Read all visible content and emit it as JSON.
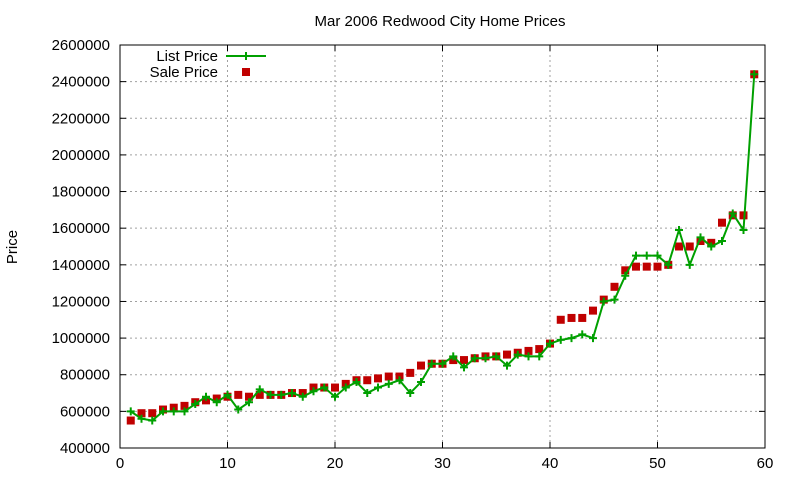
{
  "chart_data": {
    "type": "line",
    "title": "Mar 2006 Redwood City Home Prices",
    "xlabel": "",
    "ylabel": "Price",
    "xlim": [
      0,
      60
    ],
    "ylim": [
      400000,
      2600000
    ],
    "xticks": [
      0,
      10,
      20,
      30,
      40,
      50,
      60
    ],
    "yticks": [
      400000,
      600000,
      800000,
      1000000,
      1200000,
      1400000,
      1600000,
      1800000,
      2000000,
      2200000,
      2400000,
      2600000
    ],
    "grid": true,
    "legend_position": "top-left",
    "colors": {
      "list": "#00a000",
      "sale": "#c00000"
    },
    "x": [
      1,
      2,
      3,
      4,
      5,
      6,
      7,
      8,
      9,
      10,
      11,
      12,
      13,
      14,
      15,
      16,
      17,
      18,
      19,
      20,
      21,
      22,
      23,
      24,
      25,
      26,
      27,
      28,
      29,
      30,
      31,
      32,
      33,
      34,
      35,
      36,
      37,
      38,
      39,
      40,
      41,
      42,
      43,
      44,
      45,
      46,
      47,
      48,
      49,
      50,
      51,
      52,
      53,
      54,
      55,
      56,
      57,
      58,
      59
    ],
    "series": [
      {
        "name": "List Price",
        "style": "line-plus",
        "values": [
          600000,
          560000,
          550000,
          600000,
          600000,
          600000,
          640000,
          680000,
          650000,
          690000,
          610000,
          650000,
          720000,
          690000,
          690000,
          700000,
          680000,
          710000,
          730000,
          680000,
          730000,
          760000,
          700000,
          730000,
          750000,
          770000,
          700000,
          760000,
          860000,
          860000,
          900000,
          840000,
          890000,
          890000,
          900000,
          850000,
          910000,
          900000,
          900000,
          970000,
          990000,
          1000000,
          1020000,
          1000000,
          1200000,
          1210000,
          1340000,
          1450000,
          1450000,
          1450000,
          1400000,
          1590000,
          1400000,
          1550000,
          1500000,
          1530000,
          1680000,
          1590000,
          2440000
        ]
      },
      {
        "name": "Sale Price",
        "style": "square",
        "values": [
          550000,
          590000,
          590000,
          610000,
          620000,
          630000,
          650000,
          660000,
          670000,
          680000,
          690000,
          680000,
          690000,
          690000,
          690000,
          700000,
          700000,
          730000,
          730000,
          730000,
          750000,
          770000,
          770000,
          780000,
          790000,
          790000,
          810000,
          850000,
          860000,
          860000,
          880000,
          880000,
          890000,
          900000,
          900000,
          910000,
          920000,
          930000,
          940000,
          970000,
          1100000,
          1110000,
          1110000,
          1150000,
          1210000,
          1280000,
          1370000,
          1390000,
          1390000,
          1390000,
          1400000,
          1500000,
          1500000,
          1530000,
          1520000,
          1630000,
          1670000,
          1670000,
          2440000
        ]
      }
    ]
  }
}
